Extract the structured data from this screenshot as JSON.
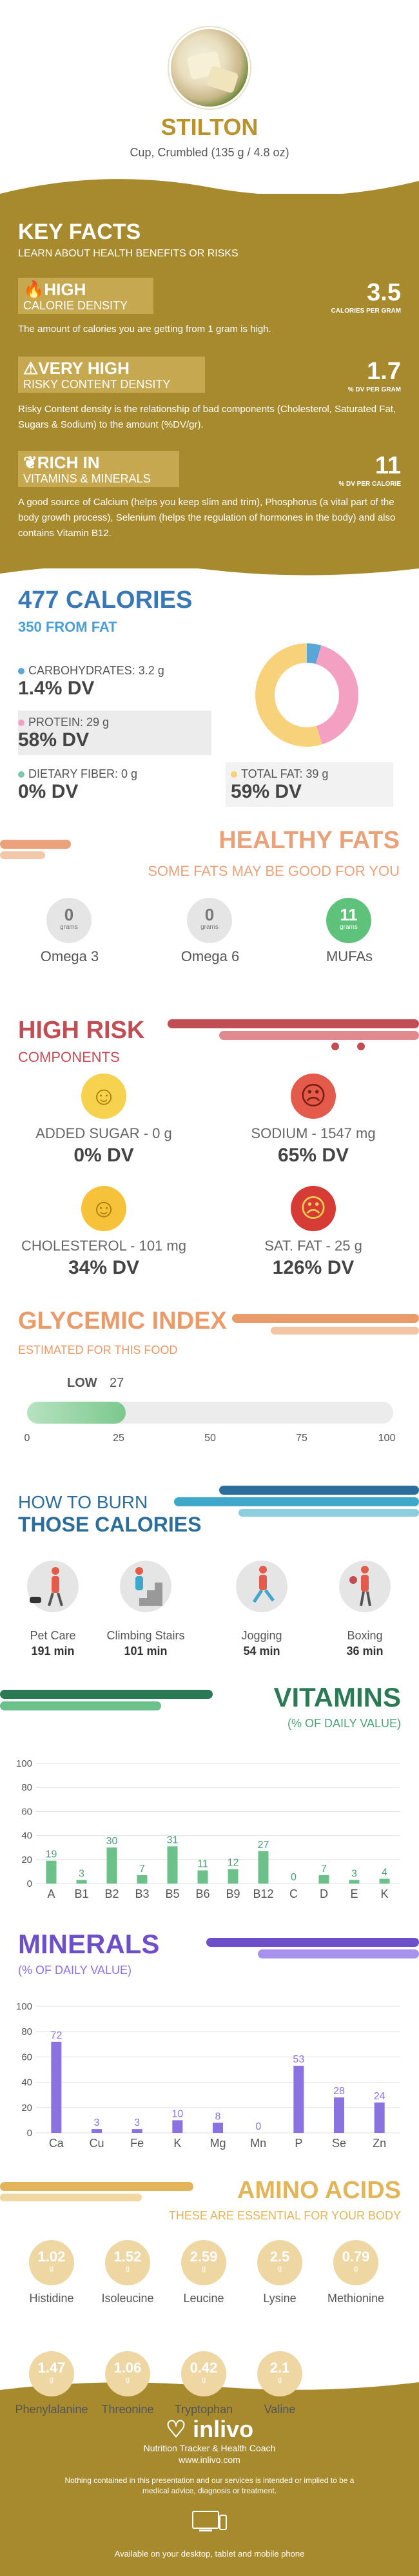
{
  "header": {
    "food_name": "STILTON",
    "serving": "Cup, Crumbled (135 g / 4.8 oz)"
  },
  "key_facts": {
    "title": "KEY FACTS",
    "subtitle": "LEARN ABOUT HEALTH BENEFITS OR RISKS",
    "items": [
      {
        "level": "HIGH",
        "name": "CALORIE DENSITY",
        "value": "3.5",
        "unit": "CALORIES PER GRAM",
        "icon": "flame-icon",
        "desc": "The amount of calories you are getting from 1 gram is high."
      },
      {
        "level": "VERY HIGH",
        "name": "RISKY CONTENT DENSITY",
        "value": "1.7",
        "unit": "% DV PER GRAM",
        "icon": "warning-icon",
        "desc": "Risky Content density is the relationship of bad components (Cholesterol, Saturated Fat, Sugars & Sodium) to the amount (%DV/gr)."
      },
      {
        "level": "RICH  IN",
        "name": "VITAMINS & MINERALS",
        "value": "11",
        "unit": "% DV PER CALORIE",
        "icon": "leaf-icon",
        "desc": "A good source of Calcium (helps you keep slim and trim), Phosphorus (a vital part of the body growth process), Selenium (helps the regulation of hormones in the body) and also contains Vitamin B12."
      }
    ]
  },
  "calories": {
    "title": "477 CALORIES",
    "from_fat": "350 FROM FAT",
    "nutrients": [
      {
        "label": "CARBOHYDRATES: 3.2 g",
        "dv": "1.4% DV",
        "color": "#5aa6d6"
      },
      {
        "label": "PROTEIN: 29 g",
        "dv": "58% DV",
        "color": "#f4a0c2"
      },
      {
        "label": "DIETARY FIBER: 0 g",
        "dv": "0% DV",
        "color": "#7cc8b0"
      },
      {
        "label": "TOTAL FAT: 39 g",
        "dv": "59% DV",
        "color": "#f7d27a"
      }
    ],
    "donut": [
      {
        "name": "carbohydrates",
        "value": 3.2,
        "color": "#5aa6d6"
      },
      {
        "name": "protein",
        "value": 29,
        "color": "#f4a0c2"
      },
      {
        "name": "fat",
        "value": 39,
        "color": "#f7d27a"
      }
    ]
  },
  "healthy_fats": {
    "title": "HEALTHY FATS",
    "subtitle": "SOME FATS MAY BE GOOD FOR YOU",
    "items": [
      {
        "name": "Omega 3",
        "value": "0",
        "unit": "grams",
        "color": "#e5e5e5",
        "text_color": "#777"
      },
      {
        "name": "Omega 6",
        "value": "0",
        "unit": "grams",
        "color": "#e5e5e5",
        "text_color": "#777"
      },
      {
        "name": "MUFAs",
        "value": "11",
        "unit": "grams",
        "color": "#5ec27a",
        "text_color": "#ffffff"
      }
    ]
  },
  "high_risk": {
    "title": "HIGH RISK",
    "subtitle": "COMPONENTS",
    "items": [
      {
        "label": "ADDED SUGAR - 0 g",
        "dv": "0% DV",
        "face": "happy-face-icon",
        "glyph": "☺",
        "color": "#f7d24f"
      },
      {
        "label": "SODIUM - 1547 mg",
        "dv": "65% DV",
        "face": "sad-face-icon",
        "glyph": "☹",
        "color": "#e45b4c"
      },
      {
        "label": "CHOLESTEROL - 101 mg",
        "dv": "34% DV",
        "face": "happy-face-icon",
        "glyph": "☺",
        "color": "#f5c23a"
      },
      {
        "label": "SAT. FAT - 25 g",
        "dv": "126% DV",
        "face": "confused-face-icon",
        "glyph": "☹",
        "color": "#d63b35"
      }
    ]
  },
  "glycemic": {
    "title": "GLYCEMIC INDEX",
    "subtitle": "ESTIMATED FOR THIS FOOD",
    "level": "LOW",
    "value": 27,
    "ticks": [
      "0",
      "25",
      "50",
      "75",
      "100"
    ]
  },
  "burn": {
    "title1": "HOW TO BURN",
    "title2": "THOSE CALORIES",
    "activities": [
      {
        "name": "Pet Care",
        "minutes": "191 min",
        "icon": "dog-walking-icon"
      },
      {
        "name": "Climbing Stairs",
        "minutes": "101 min",
        "icon": "stairs-icon"
      },
      {
        "name": "Jogging",
        "minutes": "54 min",
        "icon": "jogging-icon"
      },
      {
        "name": "Boxing",
        "minutes": "36 min",
        "icon": "boxing-icon"
      }
    ]
  },
  "vitamins": {
    "title": "VITAMINS",
    "subtitle": "(% OF DAILY VALUE)"
  },
  "minerals": {
    "title": "MINERALS",
    "subtitle": "(% OF DAILY VALUE)"
  },
  "chart_data": [
    {
      "type": "bar",
      "categories": [
        "A",
        "B1",
        "B2",
        "B3",
        "B5",
        "B6",
        "B9",
        "B12",
        "C",
        "D",
        "E",
        "K"
      ],
      "values": [
        19,
        3,
        30,
        7,
        31,
        11,
        12,
        27,
        0,
        7,
        3,
        4
      ],
      "ylim": [
        0,
        100
      ],
      "ticks": [
        "0",
        "20",
        "40",
        "60",
        "80",
        "100"
      ],
      "color": "#6cc08a",
      "label_color": "#4aa273"
    },
    {
      "type": "bar",
      "categories": [
        "Ca",
        "Cu",
        "Fe",
        "K",
        "Mg",
        "Mn",
        "P",
        "Se",
        "Zn"
      ],
      "values": [
        72,
        3,
        3,
        10,
        8,
        0,
        53,
        28,
        24
      ],
      "ylim": [
        0,
        100
      ],
      "ticks": [
        "0",
        "20",
        "40",
        "60",
        "80",
        "100"
      ],
      "color": "#8a72e0",
      "label_color": "#8a72e0"
    }
  ],
  "amino": {
    "title": "AMINO ACIDS",
    "subtitle": "THESE ARE ESSENTIAL FOR YOUR BODY",
    "items": [
      {
        "name": "Histidine",
        "value": "1.02",
        "unit": "g"
      },
      {
        "name": "Isoleucine",
        "value": "1.52",
        "unit": "g"
      },
      {
        "name": "Leucine",
        "value": "2.59",
        "unit": "g"
      },
      {
        "name": "Lysine",
        "value": "2.5",
        "unit": "g"
      },
      {
        "name": "Methionine",
        "value": "0.79",
        "unit": "g"
      },
      {
        "name": "Phenylalanine",
        "value": "1.47",
        "unit": "g"
      },
      {
        "name": "Threonine",
        "value": "1.06",
        "unit": "g"
      },
      {
        "name": "Tryptophan",
        "value": "0.42",
        "unit": "g"
      },
      {
        "name": "Valine",
        "value": "2.1",
        "unit": "g"
      }
    ]
  },
  "footer": {
    "brand": "inlivo",
    "sub1": "Nutrition Tracker & Health Coach",
    "sub2": "www.inlivo.com",
    "disclaimer": "Nothing contained in this presentation and our services is intended or implied to be a medical advice, diagnosis or treatment.",
    "available": "Available on your desktop, tablet and mobile phone"
  }
}
